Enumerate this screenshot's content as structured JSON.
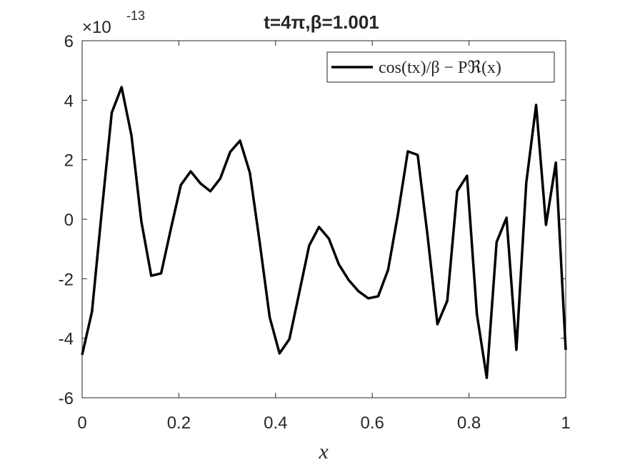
{
  "chart_data": {
    "type": "line",
    "title": "t=4π,β=1.001",
    "x_label": "x",
    "y_multiplier": "×10",
    "y_exponent": "-13",
    "x": [
      0,
      0.0204,
      0.0408,
      0.0612,
      0.0816,
      0.102,
      0.1224,
      0.1429,
      0.1633,
      0.1837,
      0.2041,
      0.2245,
      0.2449,
      0.2653,
      0.2857,
      0.3061,
      0.3265,
      0.3469,
      0.3673,
      0.3878,
      0.4082,
      0.4286,
      0.449,
      0.4694,
      0.4898,
      0.5102,
      0.5306,
      0.551,
      0.5714,
      0.5918,
      0.6122,
      0.6327,
      0.6531,
      0.6735,
      0.6939,
      0.7143,
      0.7347,
      0.7551,
      0.7755,
      0.7959,
      0.8163,
      0.8367,
      0.8571,
      0.8776,
      0.898,
      0.9184,
      0.9388,
      0.9592,
      0.9796,
      1
    ],
    "series": [
      {
        "name": "cos(tx)/β − Pℜ(x)",
        "color": "#000000",
        "values": [
          -4.56,
          -3.1,
          0.3,
          3.58,
          4.44,
          2.81,
          -0.07,
          -1.9,
          -1.82,
          -0.31,
          1.15,
          1.61,
          1.2,
          0.94,
          1.37,
          2.26,
          2.64,
          1.56,
          -0.79,
          -3.29,
          -4.51,
          -4.03,
          -2.47,
          -0.89,
          -0.26,
          -0.65,
          -1.51,
          -2.04,
          -2.42,
          -2.66,
          -2.59,
          -1.7,
          0.17,
          2.28,
          2.16,
          -0.55,
          -3.53,
          -2.74,
          0.94,
          1.46,
          -3.19,
          -5.33,
          -0.77,
          0.05,
          -4.39,
          1.22,
          3.84,
          -0.19,
          1.9,
          -4.39
        ]
      }
    ],
    "xlim": [
      0,
      1
    ],
    "xticks": [
      0,
      0.2,
      0.4,
      0.6,
      0.8,
      1
    ],
    "ylim": [
      -6,
      6
    ],
    "yticks": [
      -6,
      -4,
      -2,
      0,
      2,
      4,
      6
    ],
    "grid": false,
    "legend": "upper right"
  }
}
